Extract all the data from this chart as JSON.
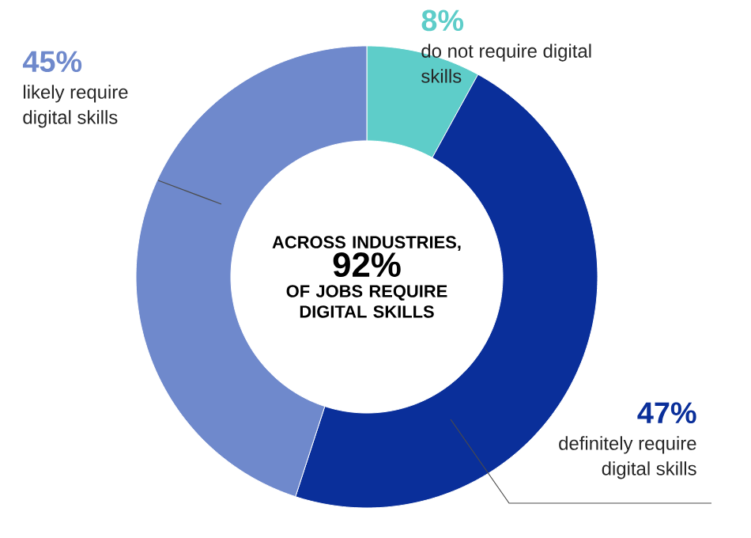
{
  "chart_data": {
    "type": "donut",
    "categories": [
      "do not require digital skills",
      "definitely require digital skills",
      "likely require digital skills"
    ],
    "values": [
      8,
      47,
      45
    ],
    "value_labels": [
      "8%",
      "47%",
      "45%"
    ],
    "colors": [
      "#5ecdc9",
      "#0a2f9a",
      "#6f89cc"
    ],
    "annotations": [
      "ACROSS INDUSTRIES,",
      "92%",
      "OF JOBS REQUIRE DIGITAL SKILLS"
    ]
  }
}
